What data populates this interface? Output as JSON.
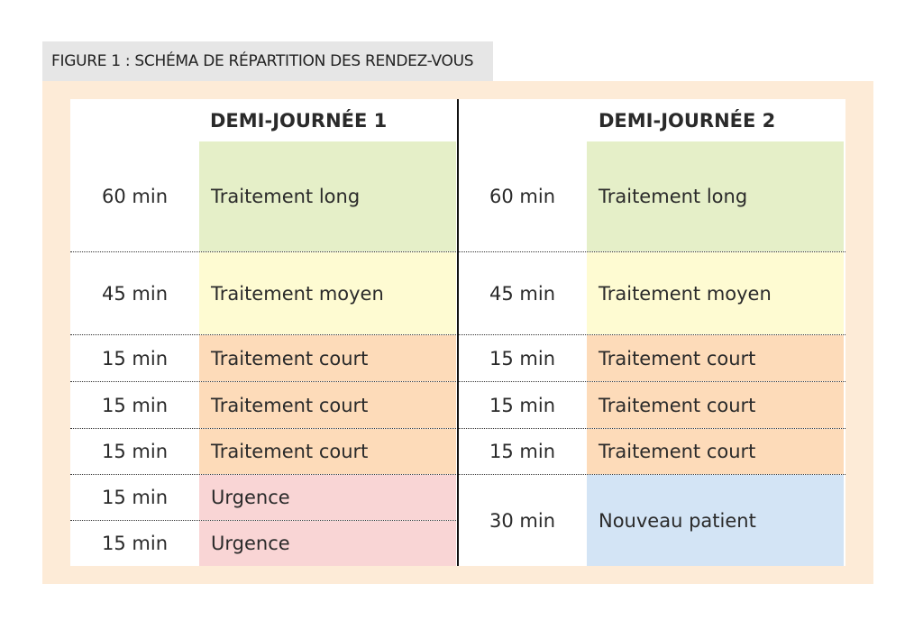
{
  "figure_title": "FIGURE 1 : SCHÉMA DE RÉPARTITION DES RENDEZ-VOUS",
  "columns": [
    {
      "header": "DEMI-JOURNÉE 1",
      "slots": [
        {
          "duration": "60 min",
          "label": "Traitement long",
          "color": "#e5efc8"
        },
        {
          "duration": "45 min",
          "label": "Traitement moyen",
          "color": "#fefbd2"
        },
        {
          "duration": "15 min",
          "label": "Traitement court",
          "color": "#fddbb9"
        },
        {
          "duration": "15 min",
          "label": "Traitement court",
          "color": "#fddbb9"
        },
        {
          "duration": "15 min",
          "label": "Traitement court",
          "color": "#fddbb9"
        },
        {
          "duration": "15 min",
          "label": "Urgence",
          "color": "#f9d5d5"
        },
        {
          "duration": "15 min",
          "label": "Urgence",
          "color": "#f9d5d5"
        }
      ]
    },
    {
      "header": "DEMI-JOURNÉE 2",
      "slots": [
        {
          "duration": "60 min",
          "label": "Traitement long",
          "color": "#e5efc8"
        },
        {
          "duration": "45 min",
          "label": "Traitement moyen",
          "color": "#fefbd2"
        },
        {
          "duration": "15 min",
          "label": "Traitement court",
          "color": "#fddbb9"
        },
        {
          "duration": "15 min",
          "label": "Traitement court",
          "color": "#fddbb9"
        },
        {
          "duration": "15 min",
          "label": "Traitement court",
          "color": "#fddbb9"
        },
        {
          "duration": "30 min",
          "label": "Nouveau patient",
          "color": "#d3e4f5"
        }
      ]
    }
  ]
}
